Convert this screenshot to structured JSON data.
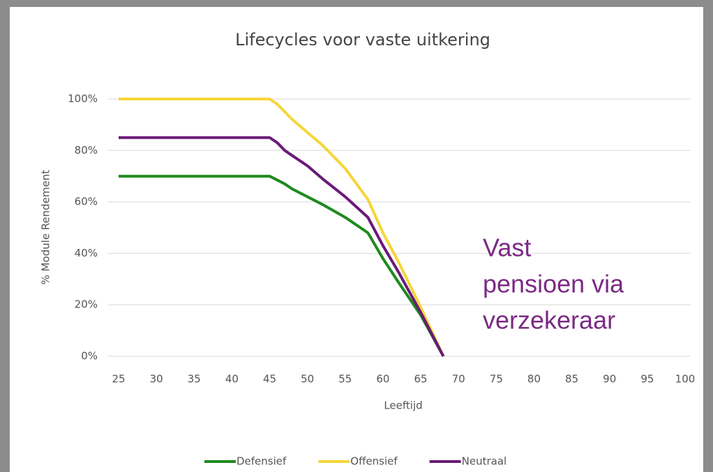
{
  "chart_data": {
    "type": "line",
    "title": "Lifecycles voor vaste uitkering",
    "xlabel": "Leeftijd",
    "ylabel": "% Module Rendement",
    "annotation": [
      "Vast",
      "pensioen via",
      "verzekeraar"
    ],
    "annotation_color": "#7b2a83",
    "x": [
      25,
      30,
      35,
      40,
      45,
      46,
      47,
      48,
      50,
      52,
      55,
      58,
      60,
      62,
      65,
      68
    ],
    "series": [
      {
        "name": "Defensief",
        "color": "#1e8a1e",
        "values": [
          70,
          70,
          70,
          70,
          70,
          68.5,
          67,
          65,
          62,
          59,
          54,
          48,
          38,
          29,
          16,
          0
        ]
      },
      {
        "name": "Offensief",
        "color": "#f5d63a",
        "values": [
          100,
          100,
          100,
          100,
          100,
          98,
          95,
          92,
          87,
          82,
          73,
          61,
          48,
          37,
          19,
          0
        ]
      },
      {
        "name": "Neutraal",
        "color": "#6a1a78",
        "values": [
          85,
          85,
          85,
          85,
          85,
          83,
          80,
          78,
          74,
          69,
          62,
          54,
          43,
          33,
          17,
          0
        ]
      }
    ],
    "xlim": [
      25,
      100
    ],
    "xticks": [
      25,
      30,
      35,
      40,
      45,
      50,
      55,
      60,
      65,
      70,
      75,
      80,
      85,
      90,
      95,
      100
    ],
    "ylim": [
      0,
      100
    ],
    "yticks": [
      {
        "value": 0,
        "label": "0%"
      },
      {
        "value": 20,
        "label": "20%"
      },
      {
        "value": 40,
        "label": "40%"
      },
      {
        "value": 60,
        "label": "60%"
      },
      {
        "value": 80,
        "label": "80%"
      },
      {
        "value": 100,
        "label": "100%"
      }
    ],
    "grid": true,
    "legend": "bottom"
  }
}
